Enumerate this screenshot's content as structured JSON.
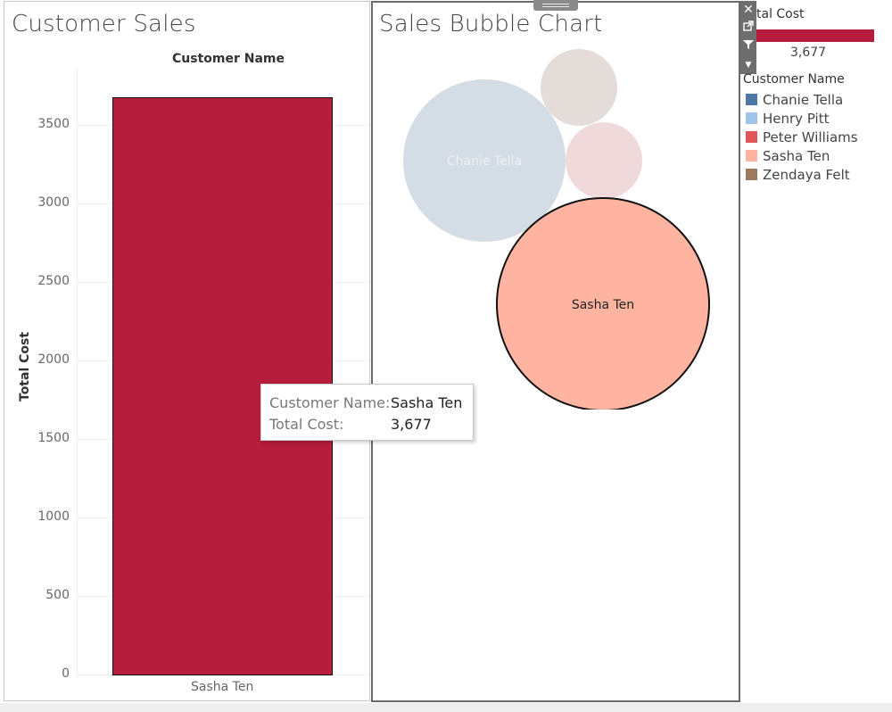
{
  "left_sheet": {
    "title": "Customer Sales",
    "column_header": "Customer Name",
    "y_axis_title": "Total Cost"
  },
  "right_sheet": {
    "title": "Sales Bubble Chart"
  },
  "tooltip": {
    "customer_key": "Customer Name:",
    "customer_value": "Sasha Ten",
    "cost_key": "Total Cost:",
    "cost_value": "3,677"
  },
  "legend": {
    "cost_title": "tal Cost",
    "cost_value": "3,677",
    "customer_title": "Customer Name",
    "items": [
      {
        "label": "Chanie Tella",
        "color": "#4e79a7"
      },
      {
        "label": "Henry Pitt",
        "color": "#a0c4e8"
      },
      {
        "label": "Peter Williams",
        "color": "#e15759"
      },
      {
        "label": "Sasha Ten",
        "color": "#ffb4a2"
      },
      {
        "label": "Zendaya Felt",
        "color": "#9c7a5f"
      }
    ]
  },
  "toolbar": {
    "close_icon": "close-icon",
    "popout_icon": "popout-icon",
    "filter_icon": "filter-icon",
    "menu_icon": "chevron-down-icon"
  },
  "chart_data": [
    {
      "type": "bar",
      "title": "Customer Sales",
      "xlabel": "Customer Name",
      "ylabel": "Total Cost",
      "categories": [
        "Sasha Ten"
      ],
      "values": [
        3677
      ],
      "ylim": [
        0,
        3700
      ],
      "yticks": [
        0,
        500,
        1000,
        1500,
        2000,
        2500,
        3000,
        3500
      ],
      "bar_color": "#b61d3c"
    },
    {
      "type": "scatter",
      "subtype": "bubble",
      "title": "Sales Bubble Chart",
      "bubbles": [
        {
          "name": "Chanie Tella",
          "label": "Chanie Tella",
          "color": "#d4dde5",
          "label_color": "#f0f0f0",
          "highlight": false
        },
        {
          "name": "",
          "label": "",
          "color": "#e3dcd8",
          "highlight": false
        },
        {
          "name": "",
          "label": "",
          "color": "#efd9da",
          "highlight": false
        },
        {
          "name": "Sasha Ten",
          "label": "Sasha Ten",
          "color": "#ffb4a2",
          "label_color": "#222222",
          "highlight": true
        }
      ]
    }
  ]
}
